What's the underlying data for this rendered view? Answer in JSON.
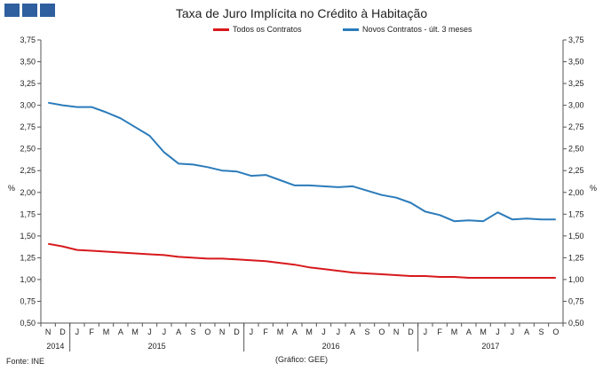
{
  "logo": {
    "name": "gee-logo"
  },
  "chart_data": {
    "type": "line",
    "title": "Taxa de Juro Implícita no Crédito à Habitação",
    "ylabel": "%",
    "ylabel_right": "%",
    "ylim": [
      0.5,
      3.75
    ],
    "yticks": [
      "0,50",
      "0,75",
      "1,00",
      "1,25",
      "1,50",
      "1,75",
      "2,00",
      "2,25",
      "2,50",
      "2,75",
      "3,00",
      "3,25",
      "3,50",
      "3,75"
    ],
    "x": [
      "N",
      "D",
      "J",
      "F",
      "M",
      "A",
      "M",
      "J",
      "J",
      "A",
      "S",
      "O",
      "N",
      "D",
      "J",
      "F",
      "M",
      "A",
      "M",
      "J",
      "J",
      "A",
      "S",
      "O",
      "N",
      "D",
      "J",
      "F",
      "M",
      "A",
      "M",
      "J",
      "J",
      "A",
      "S",
      "O"
    ],
    "years": [
      {
        "label": "2014",
        "from": 0,
        "to": 1
      },
      {
        "label": "2015",
        "from": 2,
        "to": 13
      },
      {
        "label": "2016",
        "from": 14,
        "to": 25
      },
      {
        "label": "2017",
        "from": 26,
        "to": 35
      }
    ],
    "series": [
      {
        "name": "Todos os Contratos",
        "color": "#d7191c",
        "values": [
          1.41,
          1.38,
          1.34,
          1.33,
          1.32,
          1.31,
          1.3,
          1.29,
          1.28,
          1.26,
          1.25,
          1.24,
          1.24,
          1.23,
          1.22,
          1.21,
          1.19,
          1.17,
          1.14,
          1.12,
          1.1,
          1.08,
          1.07,
          1.06,
          1.05,
          1.04,
          1.04,
          1.03,
          1.03,
          1.02,
          1.02,
          1.02,
          1.02,
          1.02,
          1.02,
          1.02
        ]
      },
      {
        "name": "Novos Contratos - últ. 3 meses",
        "color": "#2b7bba",
        "values": [
          3.03,
          3.0,
          2.98,
          2.98,
          2.92,
          2.85,
          2.75,
          2.65,
          2.46,
          2.33,
          2.32,
          2.29,
          2.25,
          2.24,
          2.19,
          2.2,
          2.14,
          2.08,
          2.08,
          2.07,
          2.06,
          2.07,
          2.02,
          1.97,
          1.94,
          1.88,
          1.78,
          1.74,
          1.67,
          1.68,
          1.67,
          1.77,
          1.69,
          1.7,
          1.69,
          1.69
        ]
      }
    ]
  },
  "footer": {
    "source": "Fonte: INE",
    "credit": "(Gráfico: GEE)"
  }
}
